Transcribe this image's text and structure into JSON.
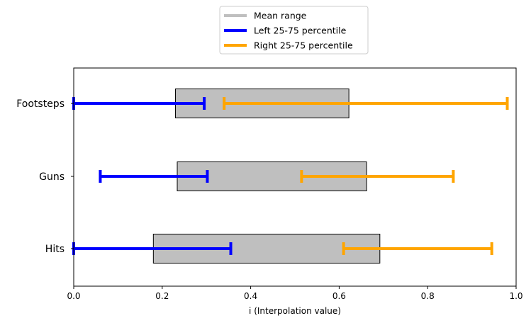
{
  "chart_data": {
    "type": "horizontal-range",
    "xlabel": "i (Interpolation value)",
    "xlim": [
      0.0,
      1.0
    ],
    "xticks": [
      "0.0",
      "0.2",
      "0.4",
      "0.6",
      "0.8",
      "1.0"
    ],
    "categories": [
      "Footsteps",
      "Guns",
      "Hits"
    ],
    "legend": {
      "placement": "top-center",
      "entries": [
        {
          "label": "Mean range",
          "color": "#bfbfbf"
        },
        {
          "label": "Left 25-75 percentile",
          "color": "#0000ff"
        },
        {
          "label": "Right 25-75 percentile",
          "color": "#ffa500"
        }
      ]
    },
    "series": [
      {
        "name": "Mean range",
        "ranges": [
          [
            0.23,
            0.622
          ],
          [
            0.234,
            0.662
          ],
          [
            0.18,
            0.692
          ]
        ]
      },
      {
        "name": "Left 25-75 percentile",
        "ranges": [
          [
            0.0,
            0.295
          ],
          [
            0.06,
            0.302
          ],
          [
            0.0,
            0.355
          ]
        ]
      },
      {
        "name": "Right 25-75 percentile",
        "ranges": [
          [
            0.34,
            0.98
          ],
          [
            0.515,
            0.858
          ],
          [
            0.61,
            0.945
          ]
        ]
      }
    ],
    "grid": false
  }
}
